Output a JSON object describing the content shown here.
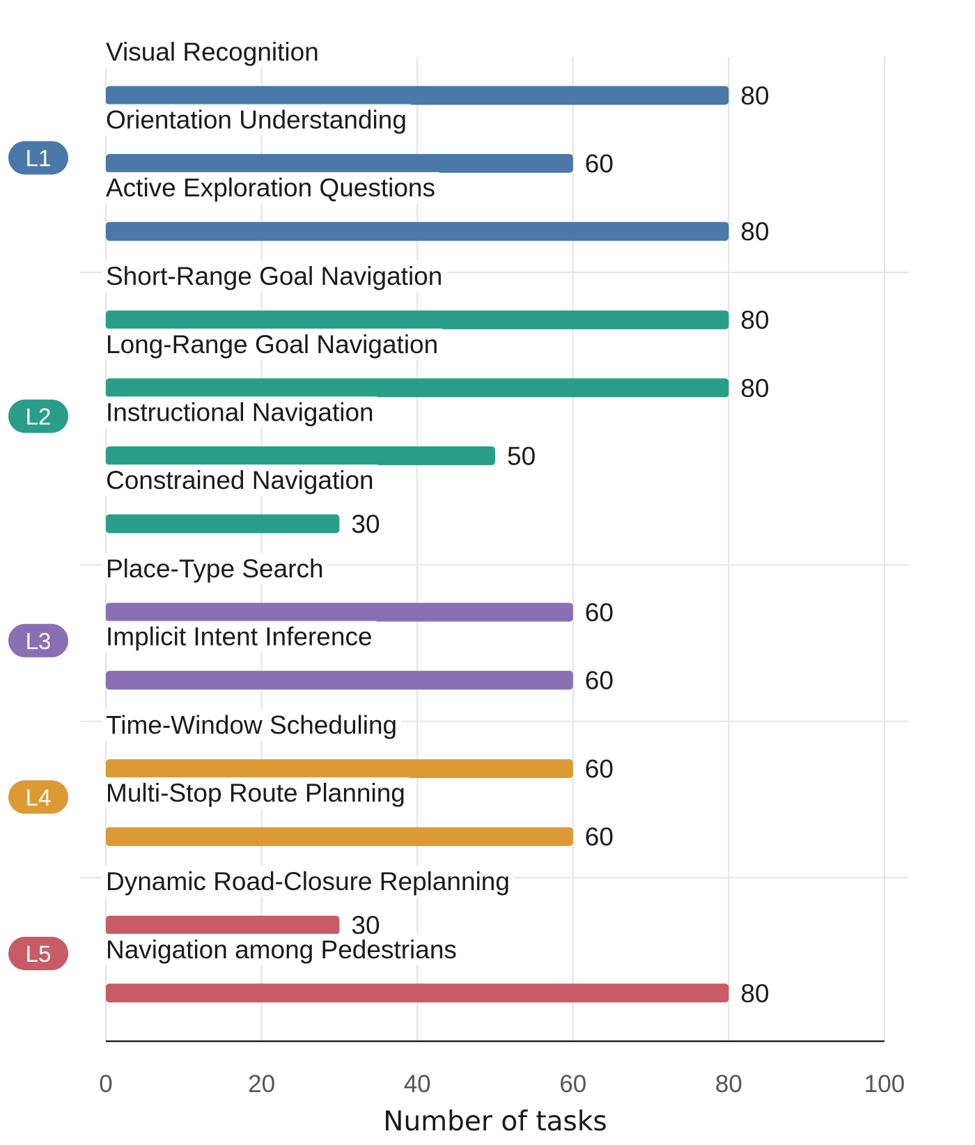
{
  "chart_data": {
    "type": "bar",
    "orientation": "horizontal",
    "xlabel": "Number of tasks",
    "xlim": [
      0,
      100
    ],
    "xticks": [
      0,
      20,
      40,
      60,
      80,
      100
    ],
    "grid": true,
    "groups": [
      {
        "name": "L1",
        "color": "#4a78a8",
        "items": [
          {
            "label": "Visual Recognition",
            "value": 80
          },
          {
            "label": "Orientation Understanding",
            "value": 60
          },
          {
            "label": "Active Exploration Questions",
            "value": 80
          }
        ]
      },
      {
        "name": "L2",
        "color": "#2a9d8a",
        "items": [
          {
            "label": "Short-Range Goal Navigation",
            "value": 80
          },
          {
            "label": "Long-Range Goal Navigation",
            "value": 80
          },
          {
            "label": "Instructional Navigation",
            "value": 50
          },
          {
            "label": "Constrained Navigation",
            "value": 30
          }
        ]
      },
      {
        "name": "L3",
        "color": "#8a6fb5",
        "items": [
          {
            "label": "Place-Type Search",
            "value": 60
          },
          {
            "label": "Implicit Intent Inference",
            "value": 60
          }
        ]
      },
      {
        "name": "L4",
        "color": "#dc9a34",
        "items": [
          {
            "label": "Time-Window Scheduling",
            "value": 60
          },
          {
            "label": "Multi-Stop Route Planning",
            "value": 60
          }
        ]
      },
      {
        "name": "L5",
        "color": "#c75b66",
        "items": [
          {
            "label": "Dynamic Road-Closure Replanning",
            "value": 30
          },
          {
            "label": "Navigation among Pedestrians",
            "value": 80
          }
        ]
      }
    ]
  }
}
